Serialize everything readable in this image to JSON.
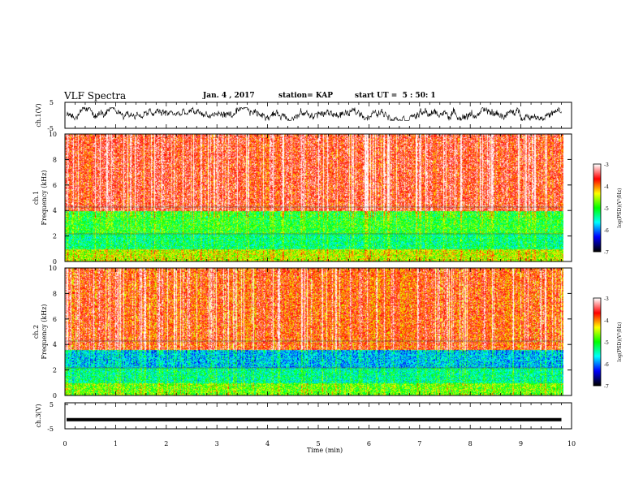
{
  "header": {
    "title": "VLF Spectra",
    "date": "Jan. 4 , 2017",
    "station": "station= KAP",
    "start": "start UT =  5 : 50: 1"
  },
  "colorbar": {
    "label": "log(PSD)(V²/Hz)",
    "ticks": [
      "-3",
      "-4",
      "-5",
      "-6",
      "-7"
    ],
    "stops": [
      "#000000",
      "#0000ff",
      "#00ffff",
      "#00ff00",
      "#ffff00",
      "#ff0000",
      "#ffffff"
    ]
  },
  "chart_data": [
    {
      "type": "line",
      "panel": "ch1_waveform",
      "ylabel": "ch.1(V)",
      "ylim": [
        -5,
        5
      ],
      "yticks": [
        "5",
        "-5"
      ],
      "xlim": [
        0,
        10
      ],
      "series": [
        {
          "values_description_range": [
            -2,
            3
          ]
        }
      ]
    },
    {
      "type": "heatmap",
      "panel": "ch1_spectrogram",
      "ylabel_line1": "ch.1",
      "ylabel_line2": "Frequency (kHz)",
      "ylim": [
        0,
        10
      ],
      "yticks": [
        "0",
        "2",
        "4",
        "6",
        "8",
        "10"
      ],
      "xlim": [
        0,
        9.8
      ],
      "bands": [
        {
          "f_from": 0,
          "f_to": 1,
          "logpsd": -4.5
        },
        {
          "f_from": 1,
          "f_to": 2.2,
          "logpsd": -5.3
        },
        {
          "f_from": 2.2,
          "f_to": 4,
          "logpsd": -5.0
        },
        {
          "f_from": 4,
          "f_to": 10,
          "logpsd": -3.6
        }
      ]
    },
    {
      "type": "heatmap",
      "panel": "ch2_spectrogram",
      "ylabel_line1": "ch.2",
      "ylabel_line2": "Frequency (kHz)",
      "ylim": [
        0,
        10
      ],
      "yticks": [
        "0",
        "2",
        "4",
        "6",
        "8",
        "10"
      ],
      "xlim": [
        0,
        9.8
      ],
      "bands": [
        {
          "f_from": 0,
          "f_to": 1,
          "logpsd": -4.8
        },
        {
          "f_from": 1,
          "f_to": 2.2,
          "logpsd": -5.4
        },
        {
          "f_from": 2.2,
          "f_to": 3.6,
          "logpsd": -5.8
        },
        {
          "f_from": 3.6,
          "f_to": 10,
          "logpsd": -3.8
        }
      ]
    },
    {
      "type": "line",
      "panel": "ch3_waveform",
      "ylabel": "ch.3(V)",
      "ylim": [
        -5,
        5
      ],
      "yticks": [
        "5",
        "-5"
      ],
      "xlim": [
        0,
        10
      ],
      "series": [
        {
          "values": [
            -1.5,
            -1.5
          ]
        }
      ]
    }
  ],
  "xaxis": {
    "label": "Time (min)",
    "ticks": [
      "0",
      "1",
      "2",
      "3",
      "4",
      "5",
      "6",
      "7",
      "8",
      "9",
      "10"
    ]
  }
}
